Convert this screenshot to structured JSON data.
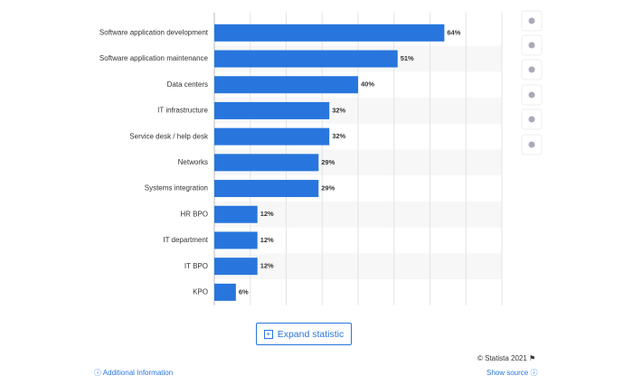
{
  "chart_data": {
    "type": "hbar",
    "categories": [
      "Software application development",
      "Software application maintenance",
      "Data centers",
      "IT infrastructure",
      "Service desk / help desk",
      "Networks",
      "Systems integration",
      "HR BPO",
      "IT department",
      "IT BPO",
      "KPO"
    ],
    "values": [
      64,
      51,
      40,
      32,
      32,
      29,
      29,
      12,
      12,
      12,
      6
    ],
    "value_labels": [
      "64%",
      "51%",
      "40%",
      "32%",
      "32%",
      "29%",
      "29%",
      "12%",
      "12%",
      "12%",
      "6%"
    ],
    "color": "#2876dd",
    "xlim": [
      0,
      80
    ],
    "xticks": [
      0,
      10,
      20,
      30,
      40,
      50,
      60,
      70,
      80
    ],
    "grid": true
  },
  "button": "Expand statistic",
  "copyright": "© Statista 2021",
  "footer": {
    "left": "Additional Information",
    "right": "Show source"
  }
}
